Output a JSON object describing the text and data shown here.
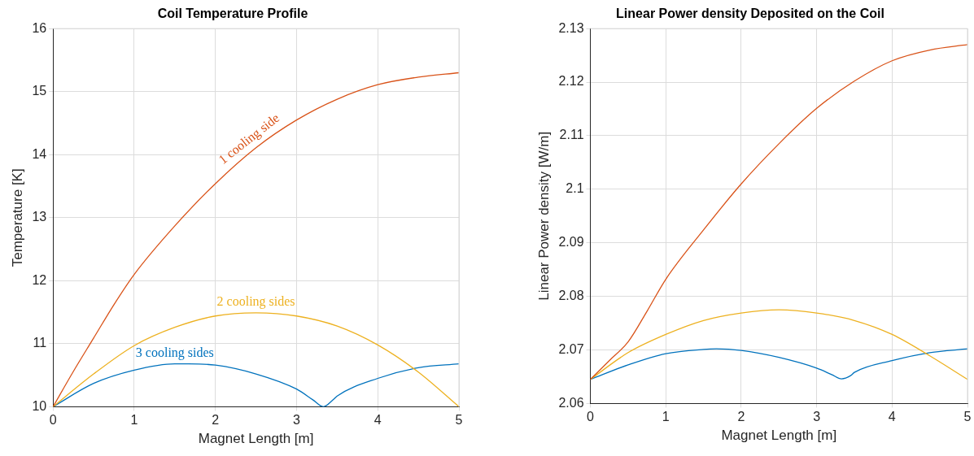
{
  "chart_data": [
    {
      "type": "line",
      "title": "Coil Temperature Profile",
      "xlabel": "Magnet Length [m]",
      "ylabel": "Temperature [K]",
      "xlim": [
        0,
        5
      ],
      "xticks": [
        0,
        1,
        2,
        3,
        4,
        5
      ],
      "ylim": [
        10,
        16
      ],
      "yticks": [
        10,
        11,
        12,
        13,
        14,
        15,
        16
      ],
      "grid": true,
      "series": [
        {
          "name": "1 cooling side",
          "color": "#d95319",
          "x": [
            0,
            0.25,
            0.5,
            0.75,
            1,
            1.5,
            2,
            2.5,
            3,
            3.5,
            4,
            4.5,
            5
          ],
          "values": [
            10,
            10.56,
            11.09,
            11.62,
            12.1,
            12.87,
            13.54,
            14.11,
            14.55,
            14.88,
            15.11,
            15.23,
            15.3
          ]
        },
        {
          "name": "2 cooling sides",
          "color": "#edb120",
          "x": [
            0,
            0.5,
            1,
            1.5,
            2,
            2.5,
            3,
            3.5,
            4,
            4.5,
            5
          ],
          "values": [
            10,
            10.52,
            10.97,
            11.26,
            11.44,
            11.49,
            11.44,
            11.28,
            10.98,
            10.55,
            10
          ]
        },
        {
          "name": "3 cooling sides",
          "color": "#0072bd",
          "x": [
            0,
            0.5,
            1,
            1.5,
            1.67,
            2,
            2.5,
            3,
            3.2,
            3.33,
            3.45,
            3.5,
            4,
            4.5,
            5
          ],
          "values": [
            10,
            10.37,
            10.58,
            10.68,
            10.68,
            10.66,
            10.52,
            10.28,
            10.11,
            10,
            10.11,
            10.17,
            10.45,
            10.62,
            10.68
          ]
        }
      ]
    },
    {
      "type": "line",
      "title": "Linear Power density Deposited on the Coil",
      "xlabel": "Magnet Length [m]",
      "ylabel": "Linear Power density [W/m]",
      "xlim": [
        0,
        5
      ],
      "xticks": [
        0,
        1,
        2,
        3,
        4,
        5
      ],
      "ylim": [
        2.06,
        2.13
      ],
      "yticks": [
        2.06,
        2.07,
        2.08,
        2.09,
        2.1,
        2.11,
        2.12,
        2.13
      ],
      "grid": true,
      "series": [
        {
          "color": "#d95319",
          "x": [
            0,
            0.25,
            0.5,
            0.75,
            1,
            1.5,
            2,
            2.5,
            3,
            3.5,
            4,
            4.5,
            5
          ],
          "values": [
            2.0645,
            2.068,
            2.0715,
            2.0772,
            2.0832,
            2.0924,
            2.101,
            2.1085,
            2.1151,
            2.1202,
            2.124,
            2.126,
            2.127
          ]
        },
        {
          "color": "#edb120",
          "x": [
            0,
            0.5,
            1,
            1.5,
            2,
            2.5,
            3,
            3.5,
            4,
            4.5,
            5
          ],
          "values": [
            2.0645,
            2.0695,
            2.0729,
            2.0755,
            2.0769,
            2.0775,
            2.0769,
            2.0755,
            2.0729,
            2.0689,
            2.0645
          ]
        },
        {
          "color": "#0072bd",
          "x": [
            0,
            0.5,
            1,
            1.5,
            1.67,
            2,
            2.5,
            3,
            3.2,
            3.33,
            3.45,
            3.5,
            4,
            4.5,
            5
          ],
          "values": [
            2.0645,
            2.0672,
            2.0693,
            2.0701,
            2.0702,
            2.0699,
            2.0686,
            2.0666,
            2.0654,
            2.0646,
            2.0652,
            2.0658,
            2.068,
            2.0695,
            2.0702
          ]
        }
      ]
    }
  ]
}
